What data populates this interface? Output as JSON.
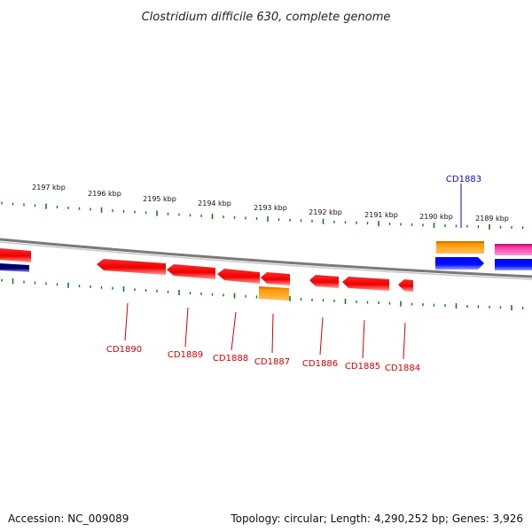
{
  "title": "Clostridium difficile 630, complete genome",
  "accession": "Accession: NC_009089",
  "topology": "Topology: circular; Length: 4,290,252 bp; Genes: 3,926",
  "kbp_labels": [
    "2197 kbp",
    "2196 kbp",
    "2195 kbp",
    "2194 kbp",
    "2193 kbp",
    "2192 kbp",
    "2191 kbp",
    "2190 kbp",
    "2189 kbp"
  ],
  "genes": [
    {
      "label": "CD1883",
      "color": "#0a0acc"
    },
    {
      "label": "CD1890",
      "color": "#d40000"
    },
    {
      "label": "CD1889",
      "color": "#d40000"
    },
    {
      "label": "CD1888",
      "color": "#d40000"
    },
    {
      "label": "CD1887",
      "color": "#d40000"
    },
    {
      "label": "CD1886",
      "color": "#d40000"
    },
    {
      "label": "CD1885",
      "color": "#d40000"
    },
    {
      "label": "CD1884",
      "color": "#d40000"
    }
  ],
  "colors": {
    "red_gene": "#ff0000",
    "orange_gene": "#ff9900",
    "blue_gene": "#0000ff",
    "magenta_gene": "#ff33aa",
    "navy_gene": "#000080",
    "tick": "#1a7a1a",
    "backbone": "#888888"
  }
}
